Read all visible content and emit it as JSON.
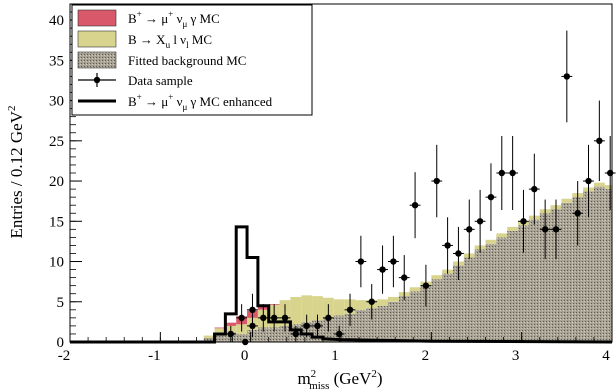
{
  "chart_data": {
    "type": "histogram",
    "xlabel_main": "m",
    "xlabel_sup": "2",
    "xlabel_sub": "miss",
    "xlabel_unit_open": " (GeV",
    "xlabel_unit_sup": "2",
    "xlabel_unit_close": ")",
    "ylabel": "Entries / 0.12 GeV",
    "ylabel_sup": "2",
    "xlim": [
      -2,
      4
    ],
    "ylim": [
      0,
      42
    ],
    "bin_width": 0.12,
    "x_ticks": [
      "-2",
      "-1",
      "0",
      "1",
      "2",
      "3",
      "4"
    ],
    "y_ticks": [
      "0",
      "5",
      "10",
      "15",
      "20",
      "25",
      "30",
      "35",
      "40"
    ],
    "grid": false,
    "legend_position": "top-left",
    "colors": {
      "signal": "#d9596a",
      "bxulnu": "#d8d48e",
      "background": "#9e9888",
      "data": "#000000",
      "enhanced": "#000000"
    },
    "legend": [
      {
        "key": "signal",
        "main": "B",
        "sup": "+",
        "rest": " → μ",
        "sup2": "+",
        "tail": " ν",
        "sub": "μ",
        "end": " γ MC"
      },
      {
        "key": "bxulnu",
        "main": "B → X",
        "sub": "u",
        "rest": " l ν",
        "sub2": "l",
        "end": " MC"
      },
      {
        "key": "background",
        "text": "Fitted background MC"
      },
      {
        "key": "data",
        "text": "Data sample"
      },
      {
        "key": "enhanced",
        "main": "B",
        "sup": "+",
        "rest": " → μ",
        "sup2": "+",
        "tail": " ν",
        "sub": "μ",
        "end": " γ MC enhanced"
      }
    ],
    "bin_edges_start": -0.52,
    "background_mc": [
      0.5,
      1.2,
      1.2,
      1.0,
      1.5,
      1.8,
      1.8,
      2.0,
      2.2,
      2.5,
      2.7,
      3.0,
      3.3,
      3.5,
      4.0,
      4.2,
      4.5,
      5.0,
      5.7,
      6.3,
      7.0,
      7.8,
      8.5,
      9.5,
      10.5,
      11.5,
      12.2,
      13.0,
      13.8,
      14.5,
      15.2,
      16.0,
      16.5,
      17.3,
      18.0,
      18.7,
      19.3,
      19.0,
      19.5,
      20.5,
      21.3,
      21.8,
      21.5
    ],
    "bxulnu_mc": [
      0.3,
      0.5,
      0.8,
      1.2,
      1.5,
      2.2,
      2.8,
      3.2,
      3.4,
      3.3,
      3.0,
      2.5,
      2.0,
      1.8,
      1.2,
      1.0,
      0.8,
      0.6,
      0.5,
      0.5,
      0.5,
      0.5,
      0.5,
      0.5,
      0.5,
      0.5,
      0.5,
      0.5,
      0.5,
      0.5,
      0.5,
      0.5,
      0.5,
      0.5,
      0.5,
      0.5,
      0.5,
      0.5,
      0.5,
      0.5,
      0.5,
      0.5,
      0.5
    ],
    "signal_mc": [
      0.0,
      0.1,
      0.4,
      1.0,
      0.9,
      0.4,
      0.1,
      0.0,
      0.0,
      0.0,
      0.0,
      0.0,
      0.0,
      0.0,
      0.0,
      0.0,
      0.0,
      0.0,
      0.0,
      0.0,
      0.0,
      0.0,
      0.0,
      0.0,
      0.0,
      0.0,
      0.0,
      0.0,
      0.0,
      0.0,
      0.0,
      0.0,
      0.0,
      0.0,
      0.0,
      0.0,
      0.0,
      0.0,
      0.0,
      0.0,
      0.0,
      0.0,
      0.0
    ],
    "enhanced_mc": {
      "x": [
        -2.0,
        -0.9,
        -0.4,
        -0.4,
        -0.28,
        -0.28,
        -0.16,
        -0.16,
        -0.04,
        -0.04,
        0.08,
        0.08,
        0.2,
        0.2,
        0.32,
        0.32,
        0.44,
        0.44,
        0.56,
        0.56,
        0.68,
        0.68,
        0.8,
        0.8,
        1.0,
        1.5,
        2.0,
        4.0
      ],
      "y": [
        0.0,
        0.0,
        0.0,
        1.0,
        1.0,
        3.5,
        3.5,
        14.3,
        14.3,
        10.5,
        10.5,
        4.5,
        4.5,
        2.5,
        2.5,
        2.5,
        2.5,
        1.5,
        1.5,
        1.0,
        1.0,
        0.6,
        0.6,
        0.4,
        0.3,
        0.2,
        0.1,
        0.0
      ]
    },
    "data_points": [
      {
        "x": -0.22,
        "y": 1,
        "err": 1.0
      },
      {
        "x": -0.1,
        "y": 3,
        "err": 1.7
      },
      {
        "x": -0.06,
        "y": 0,
        "err": 0
      },
      {
        "x": 0.02,
        "y": 2,
        "err": 1.4
      },
      {
        "x": 0.02,
        "y": 4,
        "err": 2.0
      },
      {
        "x": 0.14,
        "y": 3,
        "err": 1.7
      },
      {
        "x": 0.26,
        "y": 3,
        "err": 1.7
      },
      {
        "x": 0.38,
        "y": 3,
        "err": 1.7
      },
      {
        "x": 0.5,
        "y": 1,
        "err": 1.0
      },
      {
        "x": 0.62,
        "y": 2,
        "err": 1.4
      },
      {
        "x": 0.74,
        "y": 2,
        "err": 1.4
      },
      {
        "x": 0.86,
        "y": 3,
        "err": 1.7
      },
      {
        "x": 0.98,
        "y": 1,
        "err": 1.0
      },
      {
        "x": 1.1,
        "y": 4,
        "err": 2.0
      },
      {
        "x": 1.22,
        "y": 10,
        "err": 3.2
      },
      {
        "x": 1.34,
        "y": 5,
        "err": 2.2
      },
      {
        "x": 1.46,
        "y": 9,
        "err": 3.0
      },
      {
        "x": 1.58,
        "y": 10,
        "err": 3.2
      },
      {
        "x": 1.7,
        "y": 8,
        "err": 2.8
      },
      {
        "x": 1.82,
        "y": 17,
        "err": 4.1
      },
      {
        "x": 1.94,
        "y": 7,
        "err": 2.6
      },
      {
        "x": 2.06,
        "y": 20,
        "err": 4.5
      },
      {
        "x": 2.18,
        "y": 12,
        "err": 3.5
      },
      {
        "x": 2.3,
        "y": 11,
        "err": 3.3
      },
      {
        "x": 2.42,
        "y": 14,
        "err": 3.7
      },
      {
        "x": 2.54,
        "y": 15,
        "err": 3.9
      },
      {
        "x": 2.66,
        "y": 18,
        "err": 4.2
      },
      {
        "x": 2.78,
        "y": 21,
        "err": 4.6
      },
      {
        "x": 2.9,
        "y": 21,
        "err": 4.6
      },
      {
        "x": 3.02,
        "y": 15,
        "err": 3.9
      },
      {
        "x": 3.14,
        "y": 19,
        "err": 4.4
      },
      {
        "x": 3.26,
        "y": 14,
        "err": 3.7
      },
      {
        "x": 3.38,
        "y": 14,
        "err": 3.7
      },
      {
        "x": 3.5,
        "y": 33,
        "err": 5.7
      },
      {
        "x": 3.62,
        "y": 16,
        "err": 4.0
      },
      {
        "x": 3.74,
        "y": 20,
        "err": 4.5
      },
      {
        "x": 3.86,
        "y": 25,
        "err": 5.0
      },
      {
        "x": 3.98,
        "y": 21,
        "err": 4.6
      }
    ]
  }
}
